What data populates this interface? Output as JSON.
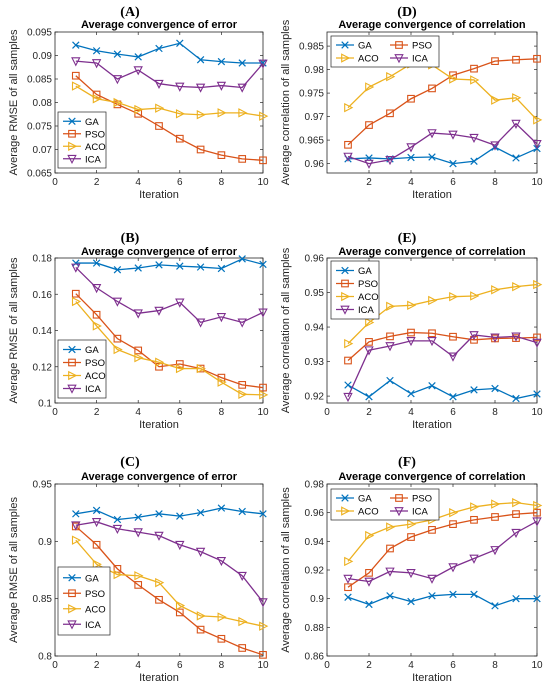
{
  "colors": {
    "GA": "#0072BD",
    "PSO": "#D95319",
    "ACO": "#EDB120",
    "ICA": "#7E2F8E"
  },
  "chart_data": [
    {
      "panel": "(A)",
      "type": "line",
      "title": "Average convergence of error",
      "xlabel": "Iteration",
      "ylabel": "Average RMSE of all samples",
      "xlim": [
        0,
        10
      ],
      "ylim": [
        0.065,
        0.095
      ],
      "xticks": [
        "0",
        "2",
        "4",
        "6",
        "8",
        "10"
      ],
      "yticks": [
        "0.065",
        "0.07",
        "0.075",
        "0.08",
        "0.085",
        "0.09",
        "0.095"
      ],
      "legend_position": "bottom-left",
      "legend_columns": 1,
      "grid": false,
      "x": [
        1,
        2,
        3,
        4,
        5,
        6,
        7,
        8,
        9,
        10
      ],
      "series": [
        {
          "name": "GA",
          "values": [
            0.0922,
            0.091,
            0.0903,
            0.0897,
            0.0915,
            0.0926,
            0.0891,
            0.0887,
            0.0884,
            0.0884
          ]
        },
        {
          "name": "PSO",
          "values": [
            0.0857,
            0.0817,
            0.0796,
            0.0776,
            0.075,
            0.0723,
            0.07,
            0.0688,
            0.068,
            0.0677
          ]
        },
        {
          "name": "ACO",
          "values": [
            0.0835,
            0.0808,
            0.08,
            0.0785,
            0.0788,
            0.0776,
            0.0774,
            0.0778,
            0.0778,
            0.0771
          ]
        },
        {
          "name": "ICA",
          "values": [
            0.0888,
            0.0884,
            0.085,
            0.0869,
            0.084,
            0.0834,
            0.0832,
            0.0836,
            0.0832,
            0.0883
          ]
        }
      ]
    },
    {
      "panel": "(B)",
      "type": "line",
      "title": "Average convergence of error",
      "xlabel": "Iteration",
      "ylabel": "Average RMSE of all samples",
      "xlim": [
        0,
        10
      ],
      "ylim": [
        0.1,
        0.18
      ],
      "xticks": [
        "0",
        "2",
        "4",
        "6",
        "8",
        "10"
      ],
      "yticks": [
        "0.1",
        "0.12",
        "0.14",
        "0.16",
        "0.18"
      ],
      "legend_position": "bottom-left",
      "legend_columns": 1,
      "grid": false,
      "x": [
        1,
        2,
        3,
        4,
        5,
        6,
        7,
        8,
        9,
        10
      ],
      "series": [
        {
          "name": "GA",
          "values": [
            0.1772,
            0.1772,
            0.1735,
            0.1745,
            0.1762,
            0.1755,
            0.175,
            0.1742,
            0.1795,
            0.1765
          ]
        },
        {
          "name": "PSO",
          "values": [
            0.1603,
            0.1487,
            0.1355,
            0.129,
            0.12,
            0.1215,
            0.119,
            0.114,
            0.11,
            0.1085
          ]
        },
        {
          "name": "ACO",
          "values": [
            0.156,
            0.1425,
            0.1295,
            0.125,
            0.1225,
            0.119,
            0.119,
            0.1115,
            0.1048,
            0.1045
          ]
        },
        {
          "name": "ICA",
          "values": [
            0.1748,
            0.1635,
            0.156,
            0.1495,
            0.151,
            0.1555,
            0.1445,
            0.1475,
            0.1445,
            0.15
          ]
        }
      ]
    },
    {
      "panel": "(C)",
      "type": "line",
      "title": "Average convergence of error",
      "xlabel": "Iteration",
      "ylabel": "Average RMSE of all samples",
      "xlim": [
        0,
        10
      ],
      "ylim": [
        0.8,
        0.95
      ],
      "xticks": [
        "0",
        "2",
        "4",
        "6",
        "8",
        "10"
      ],
      "yticks": [
        "0.8",
        "0.85",
        "0.9",
        "0.95"
      ],
      "legend_position": "bottom-left",
      "legend_columns": 1,
      "grid": false,
      "x": [
        1,
        2,
        3,
        4,
        5,
        6,
        7,
        8,
        9,
        10
      ],
      "series": [
        {
          "name": "GA",
          "values": [
            0.924,
            0.927,
            0.919,
            0.921,
            0.924,
            0.922,
            0.925,
            0.929,
            0.926,
            0.924
          ]
        },
        {
          "name": "PSO",
          "values": [
            0.913,
            0.897,
            0.876,
            0.862,
            0.849,
            0.838,
            0.823,
            0.815,
            0.807,
            0.801
          ]
        },
        {
          "name": "ACO",
          "values": [
            0.901,
            0.88,
            0.871,
            0.87,
            0.864,
            0.844,
            0.835,
            0.834,
            0.83,
            0.826
          ]
        },
        {
          "name": "ICA",
          "values": [
            0.914,
            0.917,
            0.911,
            0.908,
            0.905,
            0.897,
            0.891,
            0.883,
            0.87,
            0.847
          ]
        }
      ]
    },
    {
      "panel": "(D)",
      "type": "line",
      "title": "Average convergence of correlation",
      "xlabel": "Iteration",
      "ylabel": "Average correlation of all samples",
      "xlim": [
        0,
        10
      ],
      "ylim": [
        0.958,
        0.988
      ],
      "xticks": [
        "2",
        "4",
        "6",
        "8",
        "10"
      ],
      "yticks": [
        "0.96",
        "0.965",
        "0.97",
        "0.975",
        "0.98",
        "0.985"
      ],
      "legend_position": "top-left",
      "legend_columns": 2,
      "grid": false,
      "x": [
        1,
        2,
        3,
        4,
        5,
        6,
        7,
        8,
        9,
        10
      ],
      "series": [
        {
          "name": "GA",
          "values": [
            0.961,
            0.9612,
            0.961,
            0.9613,
            0.9614,
            0.96,
            0.9605,
            0.9635,
            0.9612,
            0.9632
          ]
        },
        {
          "name": "PSO",
          "values": [
            0.964,
            0.9682,
            0.9707,
            0.9738,
            0.976,
            0.9788,
            0.9802,
            0.9818,
            0.9821,
            0.9823
          ]
        },
        {
          "name": "ACO",
          "values": [
            0.9719,
            0.9763,
            0.9785,
            0.9812,
            0.981,
            0.978,
            0.9778,
            0.9735,
            0.974,
            0.9693
          ]
        },
        {
          "name": "ICA",
          "values": [
            0.9615,
            0.96,
            0.9608,
            0.9635,
            0.9665,
            0.9662,
            0.9655,
            0.9639,
            0.9685,
            0.9642
          ]
        }
      ]
    },
    {
      "panel": "(E)",
      "type": "line",
      "title": "Average convergence of correlation",
      "xlabel": "Iteration",
      "ylabel": "Average correlation of all samples",
      "xlim": [
        0,
        10
      ],
      "ylim": [
        0.918,
        0.96
      ],
      "xticks": [
        "0",
        "2",
        "4",
        "6",
        "8",
        "10"
      ],
      "yticks": [
        "0.92",
        "0.93",
        "0.94",
        "0.95",
        "0.96"
      ],
      "legend_position": "top-left",
      "legend_columns": 1,
      "grid": false,
      "x": [
        1,
        2,
        3,
        4,
        5,
        6,
        7,
        8,
        9,
        10
      ],
      "series": [
        {
          "name": "GA",
          "values": [
            0.9232,
            0.9198,
            0.9245,
            0.9207,
            0.923,
            0.9198,
            0.9218,
            0.9222,
            0.9193,
            0.9206
          ]
        },
        {
          "name": "PSO",
          "values": [
            0.9303,
            0.9357,
            0.9373,
            0.9384,
            0.9382,
            0.9372,
            0.9363,
            0.9367,
            0.9368,
            0.937
          ]
        },
        {
          "name": "ACO",
          "values": [
            0.9352,
            0.9413,
            0.946,
            0.9463,
            0.9477,
            0.9488,
            0.949,
            0.9508,
            0.9517,
            0.9523
          ]
        },
        {
          "name": "ICA",
          "values": [
            0.9198,
            0.9333,
            0.9345,
            0.936,
            0.936,
            0.9315,
            0.9377,
            0.937,
            0.9373,
            0.9355
          ]
        }
      ]
    },
    {
      "panel": "(F)",
      "type": "line",
      "title": "Average convergence of correlation",
      "xlabel": "Iteration",
      "ylabel": "Average correlation of all samples",
      "xlim": [
        0,
        10
      ],
      "ylim": [
        0.86,
        0.98
      ],
      "xticks": [
        "0",
        "2",
        "4",
        "6",
        "8",
        "10"
      ],
      "yticks": [
        "0.86",
        "0.88",
        "0.9",
        "0.92",
        "0.94",
        "0.96",
        "0.98"
      ],
      "legend_position": "top-left",
      "legend_columns": 2,
      "grid": false,
      "x": [
        1,
        2,
        3,
        4,
        5,
        6,
        7,
        8,
        9,
        10
      ],
      "series": [
        {
          "name": "GA",
          "values": [
            0.901,
            0.896,
            0.902,
            0.898,
            0.902,
            0.903,
            0.903,
            0.895,
            0.9,
            0.9
          ]
        },
        {
          "name": "PSO",
          "values": [
            0.908,
            0.918,
            0.935,
            0.943,
            0.948,
            0.952,
            0.955,
            0.957,
            0.959,
            0.96
          ]
        },
        {
          "name": "ACO",
          "values": [
            0.926,
            0.944,
            0.95,
            0.952,
            0.955,
            0.96,
            0.964,
            0.966,
            0.967,
            0.965
          ]
        },
        {
          "name": "ICA",
          "values": [
            0.914,
            0.912,
            0.919,
            0.918,
            0.914,
            0.922,
            0.928,
            0.934,
            0.946,
            0.954
          ]
        }
      ]
    }
  ]
}
